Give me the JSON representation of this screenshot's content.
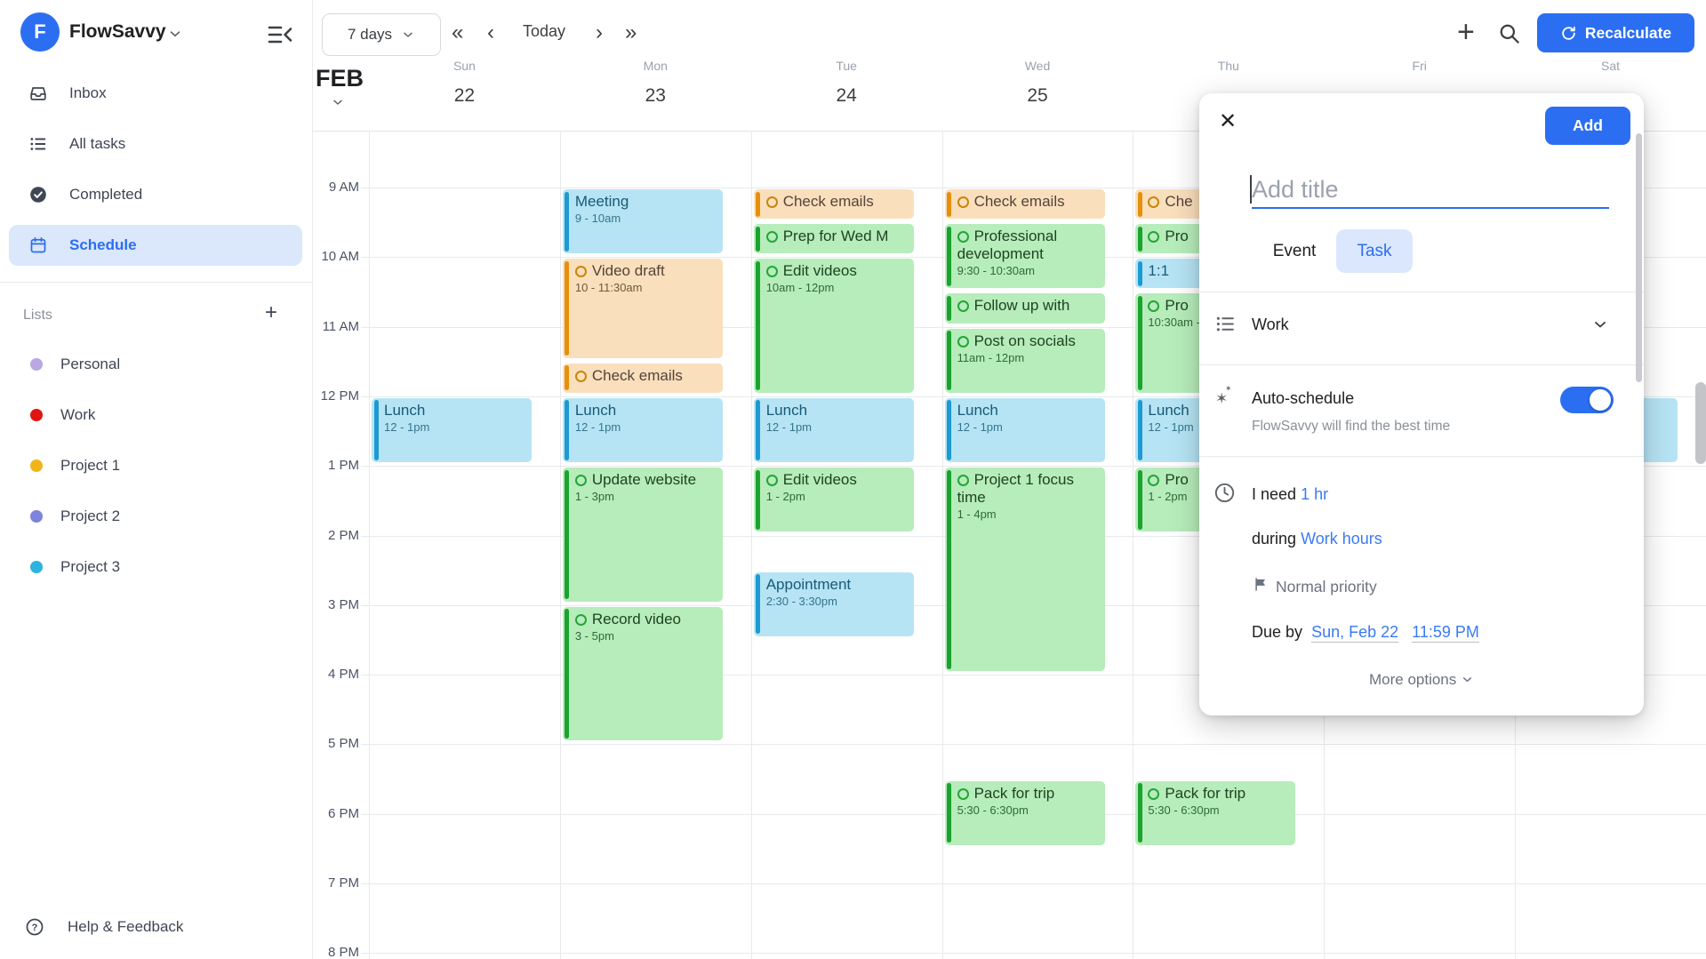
{
  "app": {
    "name": "FlowSavvy",
    "logo_letter": "F"
  },
  "sidebar": {
    "nav": [
      {
        "label": "Inbox",
        "icon": "inbox",
        "active": false
      },
      {
        "label": "All tasks",
        "icon": "list",
        "active": false
      },
      {
        "label": "Completed",
        "icon": "check-circle",
        "active": false
      },
      {
        "label": "Schedule",
        "icon": "calendar",
        "active": true
      }
    ],
    "lists_header": "Lists",
    "lists": [
      {
        "label": "Personal",
        "color": "#b9a8e3"
      },
      {
        "label": "Work",
        "color": "#e11414"
      },
      {
        "label": "Project 1",
        "color": "#f2b519"
      },
      {
        "label": "Project 2",
        "color": "#7d84dc"
      },
      {
        "label": "Project 3",
        "color": "#2cb3e0"
      }
    ],
    "help_label": "Help & Feedback"
  },
  "topbar": {
    "range_selector": "7 days",
    "today_label": "Today",
    "recalculate_label": "Recalculate"
  },
  "calendar": {
    "month_label": "FEB",
    "days": [
      {
        "name": "Sun",
        "num": "22"
      },
      {
        "name": "Mon",
        "num": "23"
      },
      {
        "name": "Tue",
        "num": "24"
      },
      {
        "name": "Wed",
        "num": "25"
      },
      {
        "name": "Thu",
        "num": ""
      },
      {
        "name": "Fri",
        "num": ""
      },
      {
        "name": "Sat",
        "num": ""
      }
    ],
    "hours": [
      "9 AM",
      "10 AM",
      "11 AM",
      "12 PM",
      "1 PM",
      "2 PM",
      "3 PM",
      "4 PM",
      "5 PM",
      "6 PM",
      "7 PM",
      "8 PM"
    ],
    "events": [
      {
        "col": 0,
        "start": 12,
        "end": 13,
        "kind": "event",
        "color": "blue",
        "title": "Lunch",
        "time": "12 - 1pm"
      },
      {
        "col": 1,
        "start": 9,
        "end": 10,
        "kind": "event",
        "color": "blue",
        "title": "Meeting",
        "time": "9 - 10am"
      },
      {
        "col": 1,
        "start": 10,
        "end": 11.5,
        "kind": "task",
        "color": "orange",
        "title": "Video draft",
        "time": "10 - 11:30am"
      },
      {
        "col": 1,
        "start": 11.5,
        "end": 12,
        "kind": "task",
        "color": "orange",
        "title": "Check emails",
        "time": ""
      },
      {
        "col": 1,
        "start": 12,
        "end": 13,
        "kind": "event",
        "color": "blue",
        "title": "Lunch",
        "time": "12 - 1pm"
      },
      {
        "col": 1,
        "start": 13,
        "end": 15,
        "kind": "task",
        "color": "green",
        "title": "Update website",
        "time": "1 - 3pm"
      },
      {
        "col": 1,
        "start": 15,
        "end": 17,
        "kind": "task",
        "color": "green",
        "title": "Record video",
        "time": "3 - 5pm"
      },
      {
        "col": 2,
        "start": 9,
        "end": 9.5,
        "kind": "task",
        "color": "orange",
        "title": "Check emails",
        "time": ""
      },
      {
        "col": 2,
        "start": 9.5,
        "end": 10,
        "kind": "task",
        "color": "green",
        "title": "Prep for Wed M",
        "time": ""
      },
      {
        "col": 2,
        "start": 10,
        "end": 12,
        "kind": "task",
        "color": "green",
        "title": "Edit videos",
        "time": "10am - 12pm"
      },
      {
        "col": 2,
        "start": 12,
        "end": 13,
        "kind": "event",
        "color": "blue",
        "title": "Lunch",
        "time": "12 - 1pm"
      },
      {
        "col": 2,
        "start": 13,
        "end": 14,
        "kind": "task",
        "color": "green",
        "title": "Edit videos",
        "time": "1 - 2pm"
      },
      {
        "col": 2,
        "start": 14.5,
        "end": 15.5,
        "kind": "event",
        "color": "blue",
        "title": "Appointment",
        "time": "2:30 - 3:30pm"
      },
      {
        "col": 3,
        "start": 9,
        "end": 9.5,
        "kind": "task",
        "color": "orange",
        "title": "Check emails",
        "time": ""
      },
      {
        "col": 3,
        "start": 9.5,
        "end": 10.5,
        "kind": "task",
        "color": "green",
        "title": "Professional development",
        "time": "9:30 - 10:30am"
      },
      {
        "col": 3,
        "start": 10.5,
        "end": 11,
        "kind": "task",
        "color": "green",
        "title": "Follow up with",
        "time": ""
      },
      {
        "col": 3,
        "start": 11,
        "end": 12,
        "kind": "task",
        "color": "green",
        "title": "Post on socials",
        "time": "11am - 12pm"
      },
      {
        "col": 3,
        "start": 12,
        "end": 13,
        "kind": "event",
        "color": "blue",
        "title": "Lunch",
        "time": "12 - 1pm"
      },
      {
        "col": 3,
        "start": 13,
        "end": 16,
        "kind": "task",
        "color": "green",
        "title": "Project 1 focus time",
        "time": "1 - 4pm"
      },
      {
        "col": 3,
        "start": 17.5,
        "end": 18.5,
        "kind": "task",
        "color": "green",
        "title": "Pack for trip",
        "time": "5:30 - 6:30pm"
      },
      {
        "col": 4,
        "start": 9,
        "end": 9.5,
        "kind": "task",
        "color": "orange",
        "title": "Che",
        "time": ""
      },
      {
        "col": 4,
        "start": 9.5,
        "end": 10,
        "kind": "task",
        "color": "green",
        "title": "Pro",
        "time": ""
      },
      {
        "col": 4,
        "start": 10,
        "end": 10.5,
        "kind": "event",
        "color": "blue",
        "title": "1:1",
        "time": ""
      },
      {
        "col": 4,
        "start": 10.5,
        "end": 12,
        "kind": "task",
        "color": "green",
        "title": "Pro",
        "time": "10:30am -"
      },
      {
        "col": 4,
        "start": 12,
        "end": 13,
        "kind": "event",
        "color": "blue",
        "title": "Lunch",
        "time": "12 - 1pm"
      },
      {
        "col": 4,
        "start": 13,
        "end": 14,
        "kind": "task",
        "color": "green",
        "title": "Pro",
        "time": "1 - 2pm"
      },
      {
        "col": 4,
        "start": 17.5,
        "end": 18.5,
        "kind": "task",
        "color": "green",
        "title": "Pack for trip",
        "time": "5:30 - 6:30pm"
      },
      {
        "col": 6,
        "start": 12,
        "end": 13,
        "kind": "event",
        "color": "blue",
        "title": "Lunch",
        "time": "12 - 1pm"
      }
    ]
  },
  "modal": {
    "add_button": "Add",
    "title_placeholder": "Add title",
    "tab_event": "Event",
    "tab_task": "Task",
    "active_tab": "Task",
    "list_value": "Work",
    "autoschedule_label": "Auto-schedule",
    "autoschedule_desc": "FlowSavvy will find the best time",
    "autoschedule_on": true,
    "need_prefix": "I need",
    "need_value": "1 hr",
    "during_prefix": "during",
    "during_value": "Work hours",
    "priority_label": "Normal priority",
    "due_prefix": "Due by",
    "due_date": "Sun, Feb 22",
    "due_time": "11:59 PM",
    "more_options_label": "More options"
  },
  "colors": {
    "accent": "#2b6ef2",
    "blue": {
      "bg": "#b6e4f4",
      "bar": "#1d9ad3",
      "title": "#175a78",
      "time": "#35758f",
      "circle": "#1d9ad3"
    },
    "green": {
      "bg": "#b7ecbb",
      "bar": "#1aa32f",
      "title": "#1d4421",
      "time": "#2f6b38",
      "circle": "#23a538"
    },
    "orange": {
      "bg": "#fadfbc",
      "bar": "#e68f0b",
      "title": "#53443a",
      "time": "#6d5a3a",
      "circle": "#c8860a"
    }
  }
}
